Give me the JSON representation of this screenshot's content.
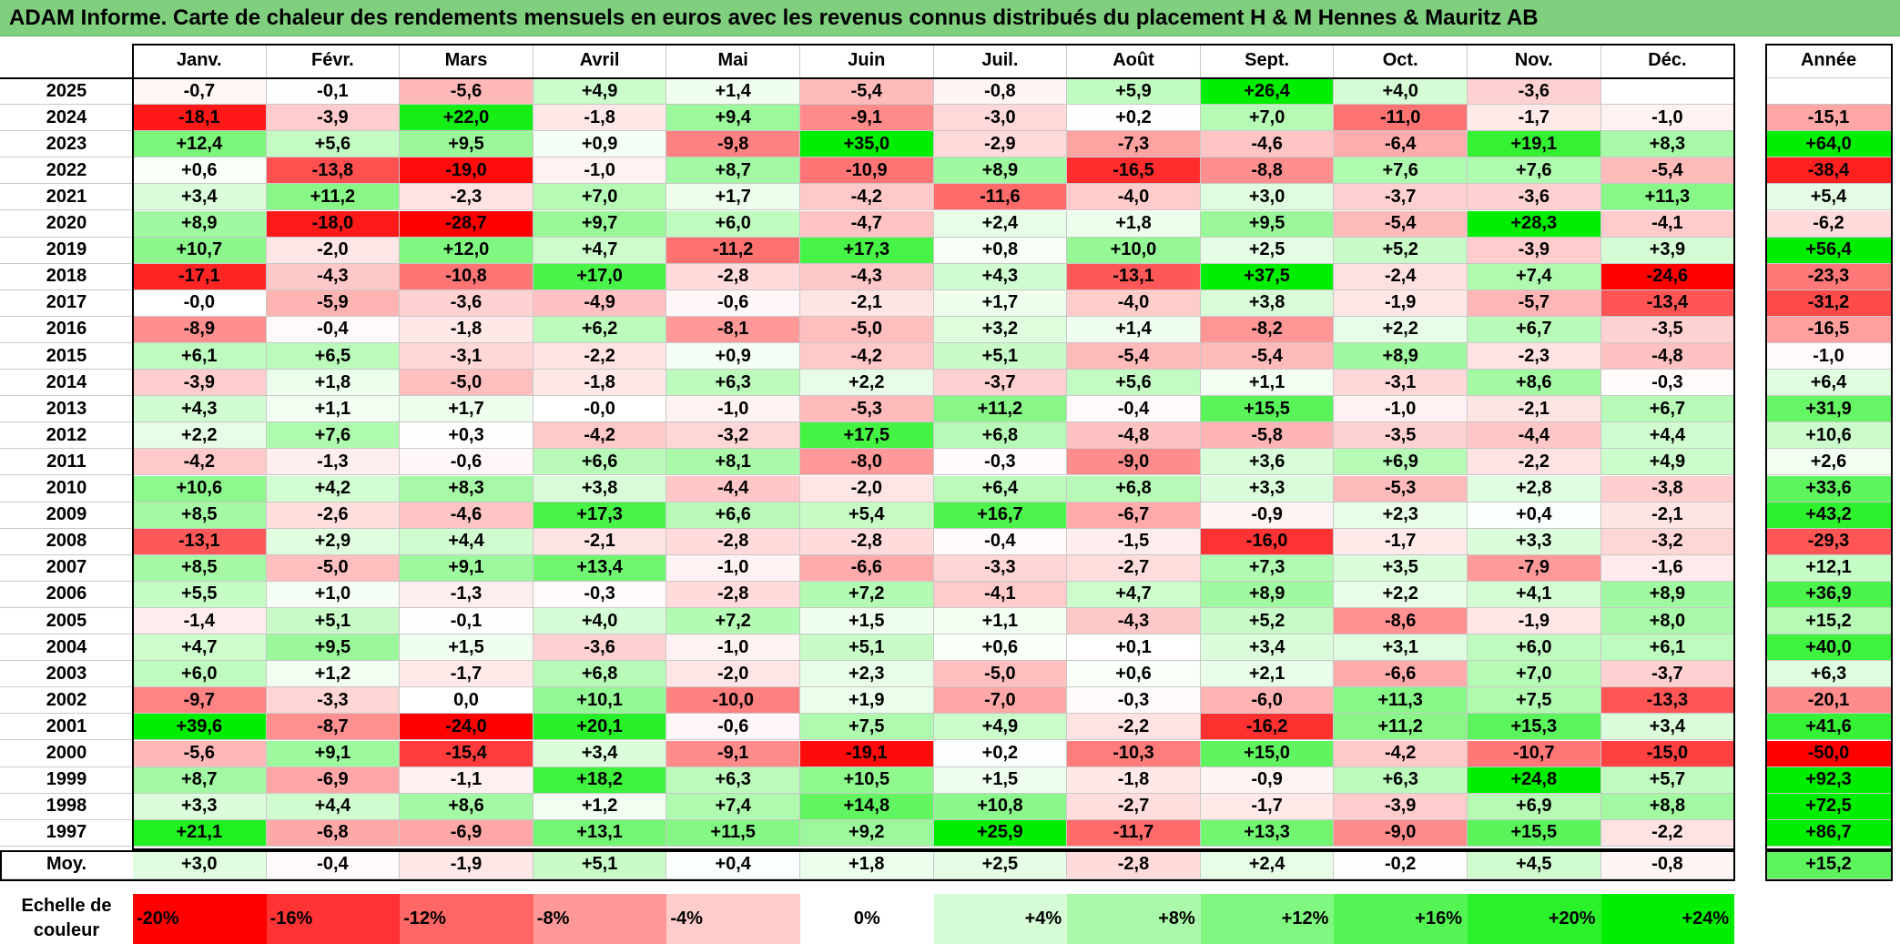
{
  "title": "ADAM Informe. Carte de chaleur des rendements mensuels en euros avec les revenus connus distribués du placement H & M Hennes & Mauritz AB",
  "headers": {
    "months": [
      "Janv.",
      "Févr.",
      "Mars",
      "Avril",
      "Mai",
      "Juin",
      "Juil.",
      "Août",
      "Sept.",
      "Oct.",
      "Nov.",
      "Déc."
    ],
    "year": "Année",
    "average_label": "Moy."
  },
  "scale_label_line1": "Echelle de",
  "scale_label_line2": "couleur",
  "scale": [
    "-20%",
    "-16%",
    "-12%",
    "-8%",
    "-4%",
    "0%",
    "+4%",
    "+8%",
    "+12%",
    "+16%",
    "+20%",
    "+24%"
  ],
  "colors": {
    "negative": "#ff0000",
    "positive": "#00ee00",
    "neutral": "#ffffff",
    "title_bar": "#7fcf7f"
  },
  "chart_data": {
    "type": "heatmap",
    "title": "ADAM Informe. Carte de chaleur des rendements mensuels en euros avec les revenus connus distribués du placement H & M Hennes & Mauritz AB",
    "columns": [
      "Janv.",
      "Févr.",
      "Mars",
      "Avril",
      "Mai",
      "Juin",
      "Juil.",
      "Août",
      "Sept.",
      "Oct.",
      "Nov.",
      "Déc.",
      "Année"
    ],
    "rows": [
      {
        "year": "2025",
        "values": [
          "-0,7",
          "-0,1",
          "-5,6",
          "+4,9",
          "+1,4",
          "-5,4",
          "-0,8",
          "+5,9",
          "+26,4",
          "+4,0",
          "-3,6",
          "",
          ""
        ]
      },
      {
        "year": "2024",
        "values": [
          "-18,1",
          "-3,9",
          "+22,0",
          "-1,8",
          "+9,4",
          "-9,1",
          "-3,0",
          "+0,2",
          "+7,0",
          "-11,0",
          "-1,7",
          "-1,0",
          "-15,1"
        ]
      },
      {
        "year": "2023",
        "values": [
          "+12,4",
          "+5,6",
          "+9,5",
          "+0,9",
          "-9,8",
          "+35,0",
          "-2,9",
          "-7,3",
          "-4,6",
          "-6,4",
          "+19,1",
          "+8,3",
          "+64,0"
        ]
      },
      {
        "year": "2022",
        "values": [
          "+0,6",
          "-13,8",
          "-19,0",
          "-1,0",
          "+8,7",
          "-10,9",
          "+8,9",
          "-16,5",
          "-8,8",
          "+7,6",
          "+7,6",
          "-5,4",
          "-38,4"
        ]
      },
      {
        "year": "2021",
        "values": [
          "+3,4",
          "+11,2",
          "-2,3",
          "+7,0",
          "+1,7",
          "-4,2",
          "-11,6",
          "-4,0",
          "+3,0",
          "-3,7",
          "-3,6",
          "+11,3",
          "+5,4"
        ]
      },
      {
        "year": "2020",
        "values": [
          "+8,9",
          "-18,0",
          "-28,7",
          "+9,7",
          "+6,0",
          "-4,7",
          "+2,4",
          "+1,8",
          "+9,5",
          "-5,4",
          "+28,3",
          "-4,1",
          "-6,2"
        ]
      },
      {
        "year": "2019",
        "values": [
          "+10,7",
          "-2,0",
          "+12,0",
          "+4,7",
          "-11,2",
          "+17,3",
          "+0,8",
          "+10,0",
          "+2,5",
          "+5,2",
          "-3,9",
          "+3,9",
          "+56,4"
        ]
      },
      {
        "year": "2018",
        "values": [
          "-17,1",
          "-4,3",
          "-10,8",
          "+17,0",
          "-2,8",
          "-4,3",
          "+4,3",
          "-13,1",
          "+37,5",
          "-2,4",
          "+7,4",
          "-24,6",
          "-23,3"
        ]
      },
      {
        "year": "2017",
        "values": [
          "-0,0",
          "-5,9",
          "-3,6",
          "-4,9",
          "-0,6",
          "-2,1",
          "+1,7",
          "-4,0",
          "+3,8",
          "-1,9",
          "-5,7",
          "-13,4",
          "-31,2"
        ]
      },
      {
        "year": "2016",
        "values": [
          "-8,9",
          "-0,4",
          "-1,8",
          "+6,2",
          "-8,1",
          "-5,0",
          "+3,2",
          "+1,4",
          "-8,2",
          "+2,2",
          "+6,7",
          "-3,5",
          "-16,5"
        ]
      },
      {
        "year": "2015",
        "values": [
          "+6,1",
          "+6,5",
          "-3,1",
          "-2,2",
          "+0,9",
          "-4,2",
          "+5,1",
          "-5,4",
          "-5,4",
          "+8,9",
          "-2,3",
          "-4,8",
          "-1,0"
        ]
      },
      {
        "year": "2014",
        "values": [
          "-3,9",
          "+1,8",
          "-5,0",
          "-1,8",
          "+6,3",
          "+2,2",
          "-3,7",
          "+5,6",
          "+1,1",
          "-3,1",
          "+8,6",
          "-0,3",
          "+6,4"
        ]
      },
      {
        "year": "2013",
        "values": [
          "+4,3",
          "+1,1",
          "+1,7",
          "-0,0",
          "-1,0",
          "-5,3",
          "+11,2",
          "-0,4",
          "+15,5",
          "-1,0",
          "-2,1",
          "+6,7",
          "+31,9"
        ]
      },
      {
        "year": "2012",
        "values": [
          "+2,2",
          "+7,6",
          "+0,3",
          "-4,2",
          "-3,2",
          "+17,5",
          "+6,8",
          "-4,8",
          "-5,8",
          "-3,5",
          "-4,4",
          "+4,4",
          "+10,6"
        ]
      },
      {
        "year": "2011",
        "values": [
          "-4,2",
          "-1,3",
          "-0,6",
          "+6,6",
          "+8,1",
          "-8,0",
          "-0,3",
          "-9,0",
          "+3,6",
          "+6,9",
          "-2,2",
          "+4,9",
          "+2,6"
        ]
      },
      {
        "year": "2010",
        "values": [
          "+10,6",
          "+4,2",
          "+8,3",
          "+3,8",
          "-4,4",
          "-2,0",
          "+6,4",
          "+6,8",
          "+3,3",
          "-5,3",
          "+2,8",
          "-3,8",
          "+33,6"
        ]
      },
      {
        "year": "2009",
        "values": [
          "+8,5",
          "-2,6",
          "-4,6",
          "+17,3",
          "+6,6",
          "+5,4",
          "+16,7",
          "-6,7",
          "-0,9",
          "+2,3",
          "+0,4",
          "-2,1",
          "+43,2"
        ]
      },
      {
        "year": "2008",
        "values": [
          "-13,1",
          "+2,9",
          "+4,4",
          "-2,1",
          "-2,8",
          "-2,8",
          "-0,4",
          "-1,5",
          "-16,0",
          "-1,7",
          "+3,3",
          "-3,2",
          "-29,3"
        ]
      },
      {
        "year": "2007",
        "values": [
          "+8,5",
          "-5,0",
          "+9,1",
          "+13,4",
          "-1,0",
          "-6,6",
          "-3,3",
          "-2,7",
          "+7,3",
          "+3,5",
          "-7,9",
          "-1,6",
          "+12,1"
        ]
      },
      {
        "year": "2006",
        "values": [
          "+5,5",
          "+1,0",
          "-1,3",
          "-0,3",
          "-2,8",
          "+7,2",
          "-4,1",
          "+4,7",
          "+8,9",
          "+2,2",
          "+4,1",
          "+8,9",
          "+36,9"
        ]
      },
      {
        "year": "2005",
        "values": [
          "-1,4",
          "+5,1",
          "-0,1",
          "+4,0",
          "+7,2",
          "+1,5",
          "+1,1",
          "-4,3",
          "+5,2",
          "-8,6",
          "-1,9",
          "+8,0",
          "+15,2"
        ]
      },
      {
        "year": "2004",
        "values": [
          "+4,7",
          "+9,5",
          "+1,5",
          "-3,6",
          "-1,0",
          "+5,1",
          "+0,6",
          "+0,1",
          "+3,4",
          "+3,1",
          "+6,0",
          "+6,1",
          "+40,0"
        ]
      },
      {
        "year": "2003",
        "values": [
          "+6,0",
          "+1,2",
          "-1,7",
          "+6,8",
          "-2,0",
          "+2,3",
          "-5,0",
          "+0,6",
          "+2,1",
          "-6,6",
          "+7,0",
          "-3,7",
          "+6,3"
        ]
      },
      {
        "year": "2002",
        "values": [
          "-9,7",
          "-3,3",
          "0,0",
          "+10,1",
          "-10,0",
          "+1,9",
          "-7,0",
          "-0,3",
          "-6,0",
          "+11,3",
          "+7,5",
          "-13,3",
          "-20,1"
        ]
      },
      {
        "year": "2001",
        "values": [
          "+39,6",
          "-8,7",
          "-24,0",
          "+20,1",
          "-0,6",
          "+7,5",
          "+4,9",
          "-2,2",
          "-16,2",
          "+11,2",
          "+15,3",
          "+3,4",
          "+41,6"
        ]
      },
      {
        "year": "2000",
        "values": [
          "-5,6",
          "+9,1",
          "-15,4",
          "+3,4",
          "-9,1",
          "-19,1",
          "+0,2",
          "-10,3",
          "+15,0",
          "-4,2",
          "-10,7",
          "-15,0",
          "-50,0"
        ]
      },
      {
        "year": "1999",
        "values": [
          "+8,7",
          "-6,9",
          "-1,1",
          "+18,2",
          "+6,3",
          "+10,5",
          "+1,5",
          "-1,8",
          "-0,9",
          "+6,3",
          "+24,8",
          "+5,7",
          "+92,3"
        ]
      },
      {
        "year": "1998",
        "values": [
          "+3,3",
          "+4,4",
          "+8,6",
          "+1,2",
          "+7,4",
          "+14,8",
          "+10,8",
          "-2,7",
          "-1,7",
          "-3,9",
          "+6,9",
          "+8,8",
          "+72,5"
        ]
      },
      {
        "year": "1997",
        "values": [
          "+21,1",
          "-6,8",
          "-6,9",
          "+13,1",
          "+11,5",
          "+9,2",
          "+25,9",
          "-11,7",
          "+13,3",
          "-9,0",
          "+15,5",
          "-2,2",
          "+86,7"
        ]
      }
    ],
    "average": [
      "+3,0",
      "-0,4",
      "-1,9",
      "+5,1",
      "+0,4",
      "+1,8",
      "+2,5",
      "-2,8",
      "+2,4",
      "-0,2",
      "+4,5",
      "-0,8",
      "+15,2"
    ],
    "color_scale": [
      -20,
      -16,
      -12,
      -8,
      -4,
      0,
      4,
      8,
      12,
      16,
      20,
      24
    ]
  }
}
